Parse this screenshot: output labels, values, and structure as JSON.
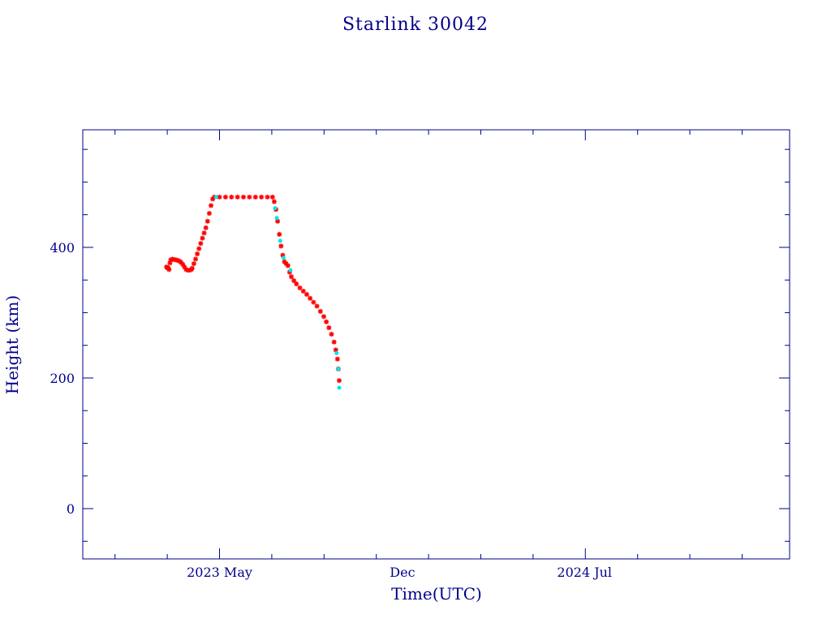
{
  "chart_data": {
    "type": "scatter",
    "title": "Starlink 30042",
    "xlabel": "Time(UTC)",
    "ylabel": "Height (km)",
    "xlim": [
      "2022-11-22",
      "2025-02-26"
    ],
    "ylim": [
      -77,
      580
    ],
    "x_ticks": [
      {
        "date": "2023-05-01",
        "label": "2023 May"
      },
      {
        "date": "2023-12-01",
        "label": "Dec"
      },
      {
        "date": "2024-07-01",
        "label": "2024 Jul"
      }
    ],
    "y_ticks": [
      0,
      200,
      400
    ],
    "grid": false,
    "series": [
      {
        "color": "#ff0000",
        "marker": "asterisk",
        "points": [
          [
            "2023-02-28",
            370
          ],
          [
            "2023-03-01",
            369
          ],
          [
            "2023-03-02",
            368
          ],
          [
            "2023-03-03",
            366
          ],
          [
            "2023-03-04",
            376
          ],
          [
            "2023-03-05",
            381
          ],
          [
            "2023-03-07",
            382
          ],
          [
            "2023-03-09",
            381
          ],
          [
            "2023-03-11",
            381
          ],
          [
            "2023-03-13",
            380
          ],
          [
            "2023-03-15",
            379
          ],
          [
            "2023-03-17",
            377
          ],
          [
            "2023-03-19",
            374
          ],
          [
            "2023-03-21",
            370
          ],
          [
            "2023-03-23",
            366
          ],
          [
            "2023-03-25",
            365
          ],
          [
            "2023-03-27",
            365
          ],
          [
            "2023-03-29",
            366
          ],
          [
            "2023-03-30",
            368
          ],
          [
            "2023-04-01",
            375
          ],
          [
            "2023-04-03",
            382
          ],
          [
            "2023-04-05",
            390
          ],
          [
            "2023-04-07",
            398
          ],
          [
            "2023-04-09",
            406
          ],
          [
            "2023-04-11",
            414
          ],
          [
            "2023-04-13",
            422
          ],
          [
            "2023-04-15",
            430
          ],
          [
            "2023-04-17",
            440
          ],
          [
            "2023-04-19",
            452
          ],
          [
            "2023-04-21",
            464
          ],
          [
            "2023-04-23",
            474
          ],
          [
            "2023-04-25",
            477
          ],
          [
            "2023-05-01",
            477
          ],
          [
            "2023-05-08",
            477
          ],
          [
            "2023-05-15",
            477
          ],
          [
            "2023-05-22",
            477
          ],
          [
            "2023-05-29",
            477
          ],
          [
            "2023-06-05",
            477
          ],
          [
            "2023-06-12",
            477
          ],
          [
            "2023-06-19",
            477
          ],
          [
            "2023-06-26",
            477
          ],
          [
            "2023-07-02",
            477
          ],
          [
            "2023-07-04",
            470
          ],
          [
            "2023-07-06",
            458
          ],
          [
            "2023-07-08",
            440
          ],
          [
            "2023-07-10",
            420
          ],
          [
            "2023-07-12",
            402
          ],
          [
            "2023-07-14",
            388
          ],
          [
            "2023-07-16",
            378
          ],
          [
            "2023-07-18",
            375
          ],
          [
            "2023-07-20",
            372
          ],
          [
            "2023-07-22",
            362
          ],
          [
            "2023-07-24",
            355
          ],
          [
            "2023-07-27",
            349
          ],
          [
            "2023-07-30",
            344
          ],
          [
            "2023-08-03",
            338
          ],
          [
            "2023-08-07",
            333
          ],
          [
            "2023-08-11",
            328
          ],
          [
            "2023-08-15",
            322
          ],
          [
            "2023-08-19",
            316
          ],
          [
            "2023-08-23",
            310
          ],
          [
            "2023-08-27",
            302
          ],
          [
            "2023-08-31",
            294
          ],
          [
            "2023-09-03",
            286
          ],
          [
            "2023-09-06",
            277
          ],
          [
            "2023-09-09",
            267
          ],
          [
            "2023-09-12",
            255
          ],
          [
            "2023-09-14",
            243
          ],
          [
            "2023-09-16",
            229
          ],
          [
            "2023-09-17",
            214
          ],
          [
            "2023-09-18",
            196
          ]
        ]
      },
      {
        "color": "#00e5ee",
        "marker": "dot",
        "points": [
          [
            "2023-04-27",
            477
          ],
          [
            "2023-07-05",
            460
          ],
          [
            "2023-07-07",
            445
          ],
          [
            "2023-07-11",
            410
          ],
          [
            "2023-07-15",
            384
          ],
          [
            "2023-07-23",
            365
          ],
          [
            "2023-09-15",
            238
          ],
          [
            "2023-09-17",
            214
          ],
          [
            "2023-09-18",
            185
          ]
        ]
      }
    ]
  }
}
